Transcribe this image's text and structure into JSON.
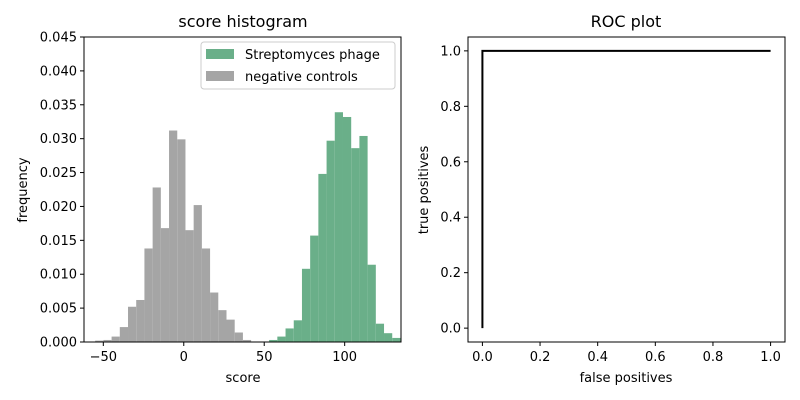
{
  "chart_data": [
    {
      "type": "bar",
      "title": "score histogram",
      "xlabel": "score",
      "ylabel": "frequency",
      "xlim": [
        -62,
        135
      ],
      "ylim": [
        0,
        0.045
      ],
      "xticks": [
        -50,
        0,
        50,
        100
      ],
      "yticks": [
        0.0,
        0.005,
        0.01,
        0.015,
        0.02,
        0.025,
        0.03,
        0.035,
        0.04,
        0.045
      ],
      "ytick_labels": [
        "0.000",
        "0.005",
        "0.010",
        "0.015",
        "0.020",
        "0.025",
        "0.030",
        "0.035",
        "0.040",
        "0.045"
      ],
      "bin_width": 5.1,
      "legend_position": "top-right",
      "series": [
        {
          "name": "Streptomyces phage",
          "color": "#6aaf89",
          "bins": [
            {
              "x": 55.6,
              "y": 0.0003
            },
            {
              "x": 60.7,
              "y": 0.0008
            },
            {
              "x": 65.8,
              "y": 0.002
            },
            {
              "x": 70.9,
              "y": 0.0032
            },
            {
              "x": 76.0,
              "y": 0.0108
            },
            {
              "x": 81.1,
              "y": 0.0157
            },
            {
              "x": 86.2,
              "y": 0.0248
            },
            {
              "x": 91.3,
              "y": 0.0297
            },
            {
              "x": 96.4,
              "y": 0.0339
            },
            {
              "x": 101.5,
              "y": 0.0332
            },
            {
              "x": 106.6,
              "y": 0.0286
            },
            {
              "x": 111.7,
              "y": 0.0304
            },
            {
              "x": 116.8,
              "y": 0.0114
            },
            {
              "x": 121.9,
              "y": 0.0027
            },
            {
              "x": 127.0,
              "y": 0.0013
            },
            {
              "x": 132.1,
              "y": 0.0006
            }
          ]
        },
        {
          "name": "negative controls",
          "color": "#a5a5a5",
          "bins": [
            {
              "x": -52.5,
              "y": 0.0002
            },
            {
              "x": -47.4,
              "y": 0.0003
            },
            {
              "x": -42.3,
              "y": 0.0008
            },
            {
              "x": -37.2,
              "y": 0.0022
            },
            {
              "x": -32.1,
              "y": 0.0052
            },
            {
              "x": -27.0,
              "y": 0.0062
            },
            {
              "x": -21.9,
              "y": 0.0138
            },
            {
              "x": -16.8,
              "y": 0.0228
            },
            {
              "x": -11.7,
              "y": 0.0168
            },
            {
              "x": -6.6,
              "y": 0.0312
            },
            {
              "x": -1.5,
              "y": 0.0299
            },
            {
              "x": 3.6,
              "y": 0.0165
            },
            {
              "x": 8.7,
              "y": 0.0202
            },
            {
              "x": 13.8,
              "y": 0.0138
            },
            {
              "x": 18.9,
              "y": 0.0073
            },
            {
              "x": 24.0,
              "y": 0.0047
            },
            {
              "x": 29.1,
              "y": 0.0033
            },
            {
              "x": 34.2,
              "y": 0.0014
            },
            {
              "x": 39.3,
              "y": 0.0003
            }
          ]
        }
      ]
    },
    {
      "type": "line",
      "title": "ROC plot",
      "xlabel": "false positives",
      "ylabel": "true positives",
      "xlim": [
        -0.05,
        1.05
      ],
      "ylim": [
        -0.05,
        1.05
      ],
      "xticks": [
        0.0,
        0.2,
        0.4,
        0.6,
        0.8,
        1.0
      ],
      "yticks": [
        0.0,
        0.2,
        0.4,
        0.6,
        0.8,
        1.0
      ],
      "tick_labels": [
        "0.0",
        "0.2",
        "0.4",
        "0.6",
        "0.8",
        "1.0"
      ],
      "series": [
        {
          "color": "#000000",
          "x": [
            0.0,
            0.0,
            1.0
          ],
          "y": [
            0.0,
            1.0,
            1.0
          ]
        }
      ]
    }
  ]
}
